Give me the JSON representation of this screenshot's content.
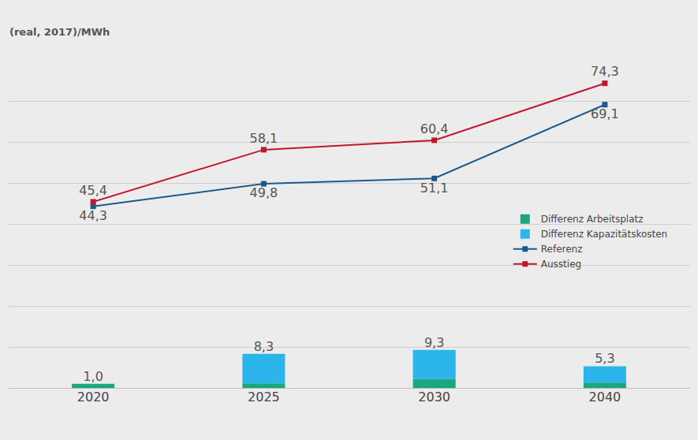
{
  "chart_data": {
    "type": "bar",
    "ylabel": "(real, 2017)/MWh",
    "categories": [
      "2020",
      "2025",
      "2030",
      "2040"
    ],
    "stacked": true,
    "data_labels": true,
    "tick_labels": "x",
    "grid": true,
    "legend": "right",
    "ylim": [
      0,
      80
    ],
    "yticks": [
      0,
      10,
      20,
      30,
      40,
      50,
      60,
      70,
      80
    ],
    "series": [
      {
        "name": "Differenz Arbeitsplatz",
        "type": "bar",
        "color": "#1aa67e",
        "values": [
          1.0,
          1.1,
          2.2,
          1.3
        ]
      },
      {
        "name": "Differenz Kapazitätskosten",
        "type": "bar",
        "color": "#2cb5ea",
        "values": [
          0.0,
          7.2,
          7.1,
          4.0
        ]
      },
      {
        "name": "Referenz",
        "type": "line",
        "color": "#1b5a8c",
        "marker": "square",
        "values": [
          44.3,
          49.8,
          51.1,
          69.1
        ],
        "value_labels": [
          "44,3",
          "49,8",
          "51,1",
          "69,1"
        ]
      },
      {
        "name": "Ausstieg",
        "type": "line",
        "color": "#c0172d",
        "marker": "square",
        "values": [
          45.4,
          58.1,
          60.4,
          74.3
        ],
        "value_labels": [
          "45,4",
          "58,1",
          "60,4",
          "74,3"
        ]
      }
    ],
    "totals": {
      "values": [
        1.0,
        8.3,
        9.3,
        5.3
      ],
      "value_labels": [
        "1,0",
        "8,3",
        "9,3",
        "5,3"
      ]
    }
  }
}
